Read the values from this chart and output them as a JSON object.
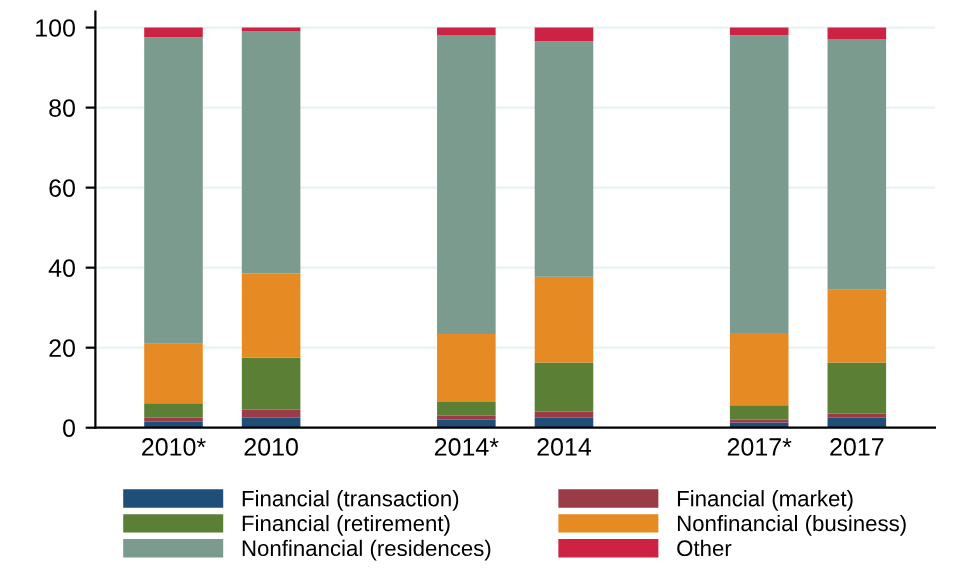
{
  "chart_data": {
    "type": "bar",
    "stacked": true,
    "categories": [
      "2010*",
      "2010",
      null,
      "2014*",
      "2014",
      null,
      "2017*",
      "2017"
    ],
    "series": [
      {
        "name": "Financial (transaction)",
        "color": "#1f4e79",
        "values": [
          1.5,
          2.5,
          null,
          2.0,
          2.5,
          null,
          1.3,
          2.5
        ]
      },
      {
        "name": "Financial (market)",
        "color": "#9a3b47",
        "values": [
          1.0,
          2.0,
          null,
          1.0,
          1.5,
          null,
          0.7,
          1.0
        ]
      },
      {
        "name": "Financial (retirement)",
        "color": "#5b7f35",
        "values": [
          3.6,
          13.0,
          null,
          3.4,
          12.3,
          null,
          3.6,
          12.8
        ]
      },
      {
        "name": "Nonfinancial (business)",
        "color": "#e68a23",
        "values": [
          14.9,
          21.1,
          null,
          17.0,
          21.4,
          null,
          18.1,
          18.2
        ]
      },
      {
        "name": "Nonfinancial (residences)",
        "color": "#7a9b8d",
        "values": [
          76.6,
          60.4,
          null,
          74.6,
          58.9,
          null,
          74.4,
          62.5
        ]
      },
      {
        "name": "Other",
        "color": "#cc2244",
        "values": [
          2.4,
          1.0,
          null,
          2.0,
          3.4,
          null,
          1.9,
          3.0
        ]
      }
    ],
    "ylim": [
      0,
      104
    ],
    "yticks": [
      0,
      20,
      40,
      60,
      80,
      100
    ],
    "grid": "y",
    "legend": "bottom"
  }
}
